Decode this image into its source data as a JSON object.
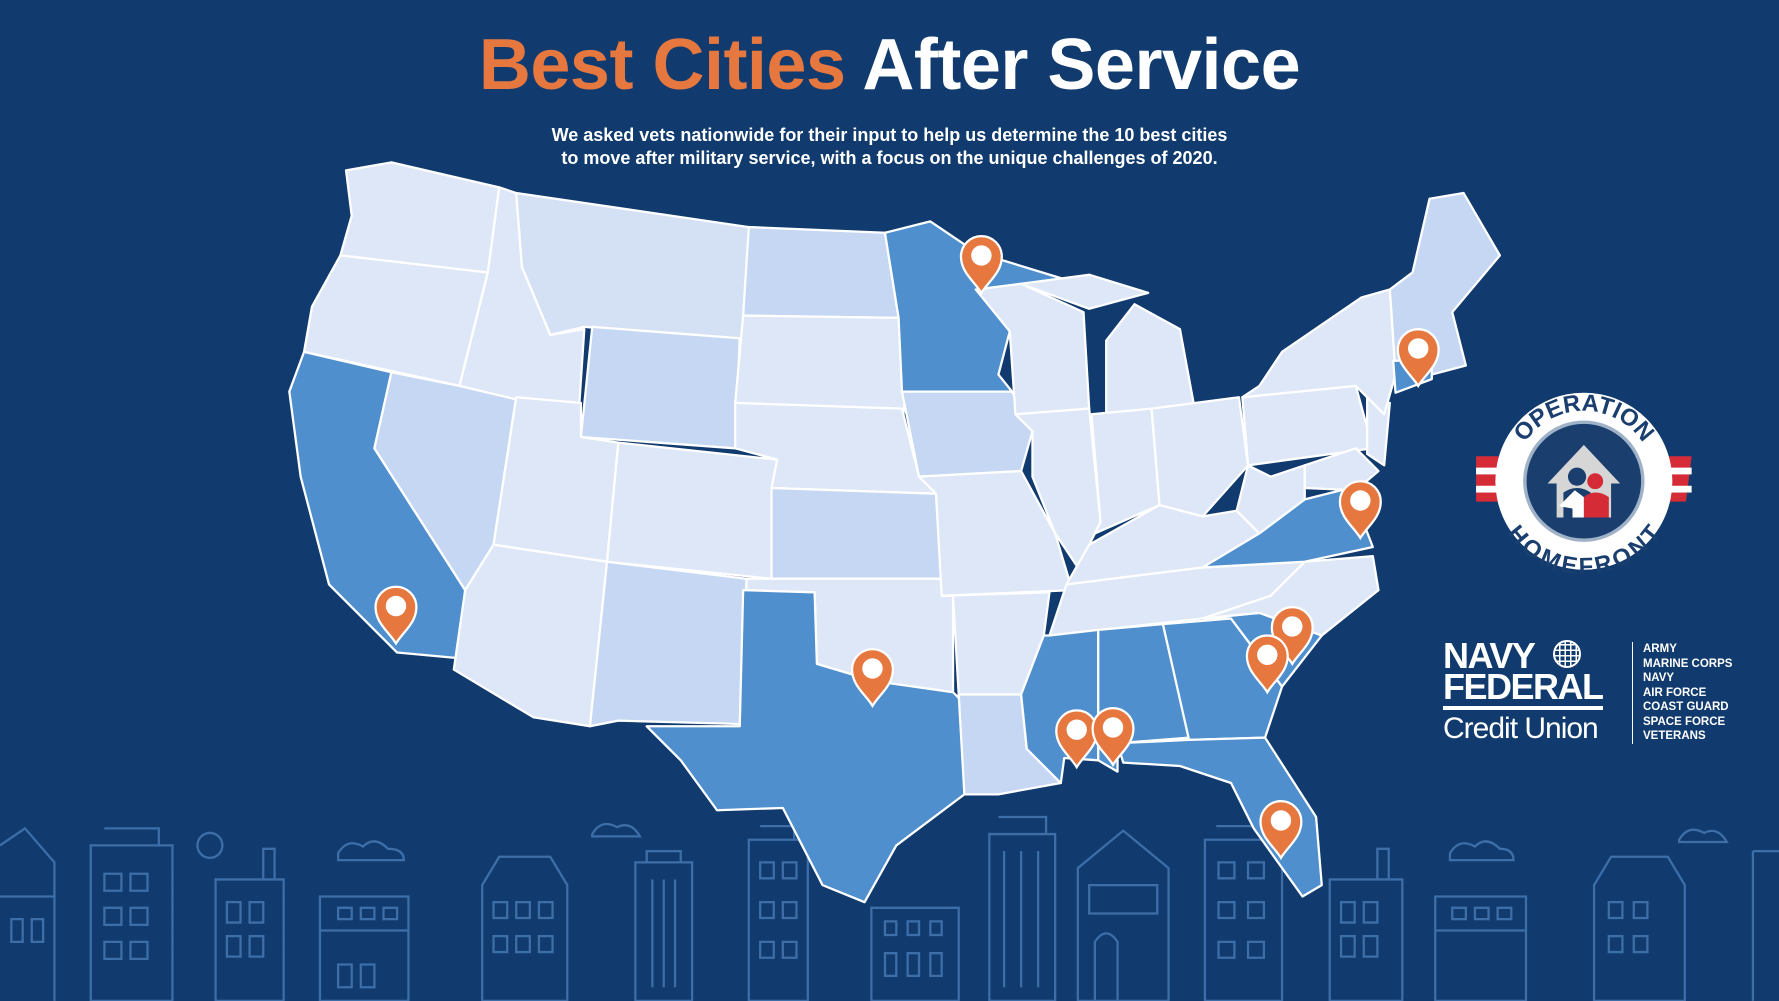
{
  "header": {
    "title_highlight": "Best Cities",
    "title_rest": "After Service",
    "subtitle_line1": "We asked vets nationwide for their input to help us determine the 10 best cities",
    "subtitle_line2": "to move after military service, with a focus on the unique challenges of 2020."
  },
  "colors": {
    "background": "#113b6e",
    "accent_orange": "#e6783f",
    "state_light": "#dde7f7",
    "state_mid": "#c5d7f2",
    "state_highlight": "#4f8fcd",
    "skyline_stroke": "#3d6ea8"
  },
  "map": {
    "highlighted_states": [
      "California",
      "Texas",
      "Minnesota",
      "Virginia",
      "Connecticut",
      "Mississippi",
      "Alabama",
      "Georgia",
      "South Carolina",
      "Florida"
    ],
    "pin_count": 10,
    "pin_icon": "map-pin-icon"
  },
  "logos": {
    "operation_homefront": {
      "top": "OPERATION",
      "bottom": "HOMEFRONT"
    },
    "navy_federal": {
      "line1": "NAVY",
      "line2": "FEDERAL",
      "line3": "Credit Union",
      "branches": [
        "ARMY",
        "MARINE CORPS",
        "NAVY",
        "AIR FORCE",
        "COAST GUARD",
        "SPACE FORCE",
        "VETERANS"
      ]
    }
  }
}
